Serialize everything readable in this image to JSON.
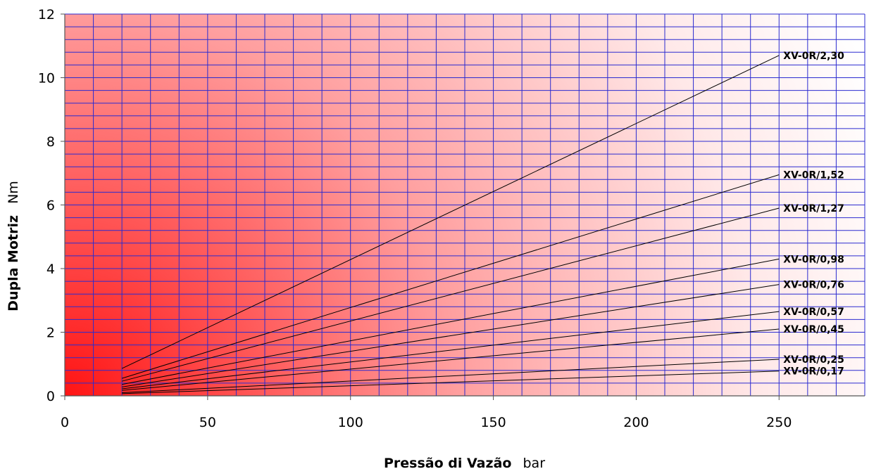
{
  "chart_data": {
    "type": "line",
    "xlabel": "Pressão di Vazão",
    "xlabel_unit": "bar",
    "ylabel": "Dupla Motriz",
    "ylabel_unit": "Nm",
    "xlim": [
      0,
      280
    ],
    "ylim": [
      0,
      12
    ],
    "x_ticks": [
      0,
      50,
      100,
      150,
      200,
      250
    ],
    "y_ticks": [
      0,
      2,
      4,
      6,
      8,
      10,
      12
    ],
    "x_minor_step": 10,
    "y_minor_step": 0.4,
    "grid": true,
    "grid_color": "#2b2bd0",
    "background": "radial gradient from red (#ff1a1a) at origin to white at top-right",
    "series": [
      {
        "name": "XV-0R/2,30",
        "x": [
          20,
          250
        ],
        "y": [
          0.86,
          10.7
        ]
      },
      {
        "name": "XV-0R/1,52",
        "x": [
          20,
          250
        ],
        "y": [
          0.55,
          6.95
        ]
      },
      {
        "name": "XV-0R/1,27",
        "x": [
          20,
          250
        ],
        "y": [
          0.46,
          5.9
        ]
      },
      {
        "name": "XV-0R/0,98",
        "x": [
          20,
          250
        ],
        "y": [
          0.36,
          4.3
        ]
      },
      {
        "name": "XV-0R/0,76",
        "x": [
          20,
          250
        ],
        "y": [
          0.28,
          3.5
        ]
      },
      {
        "name": "XV-0R/0,57",
        "x": [
          20,
          250
        ],
        "y": [
          0.22,
          2.65
        ]
      },
      {
        "name": "XV-0R/0,45",
        "x": [
          20,
          250
        ],
        "y": [
          0.17,
          2.1
        ]
      },
      {
        "name": "XV-0R/0,25",
        "x": [
          20,
          250
        ],
        "y": [
          0.1,
          1.15
        ]
      },
      {
        "name": "XV-0R/0,17",
        "x": [
          20,
          250
        ],
        "y": [
          0.07,
          0.78
        ]
      }
    ]
  }
}
